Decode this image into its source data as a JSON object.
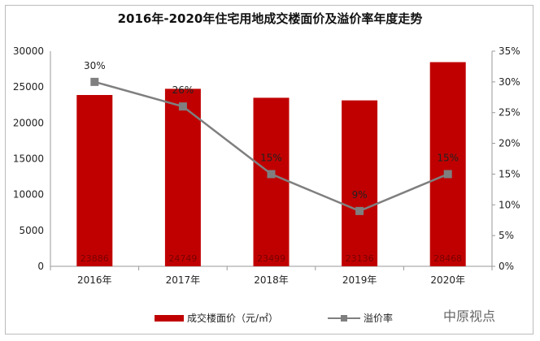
{
  "chart_data": {
    "type": "bar+line",
    "title": "2016年-2020年住宅用地成交楼面价及溢价率年度走势",
    "categories": [
      "2016年",
      "2017年",
      "2018年",
      "2019年",
      "2020年"
    ],
    "series": [
      {
        "name": "成交楼面价（元/㎡）",
        "type": "bar",
        "axis": "left",
        "color": "#c00000",
        "values": [
          23886,
          24749,
          23499,
          23136,
          28468
        ],
        "labels": [
          "23886",
          "24749",
          "23499",
          "23136",
          "28468"
        ]
      },
      {
        "name": "溢价率",
        "type": "line",
        "axis": "right",
        "color": "#7f7f7f",
        "values": [
          30,
          26,
          15,
          9,
          15
        ],
        "labels": [
          "30%",
          "26%",
          "15%",
          "9%",
          "15%"
        ]
      }
    ],
    "ylim_left": [
      0,
      30000
    ],
    "yticks_left": [
      "0",
      "5000",
      "10000",
      "15000",
      "20000",
      "25000",
      "30000"
    ],
    "ylim_right": [
      0,
      35
    ],
    "yticks_right": [
      "0%",
      "5%",
      "10%",
      "15%",
      "20%",
      "25%",
      "30%",
      "35%"
    ],
    "legend": "bottom",
    "grid": false
  },
  "watermark": "中原视点"
}
